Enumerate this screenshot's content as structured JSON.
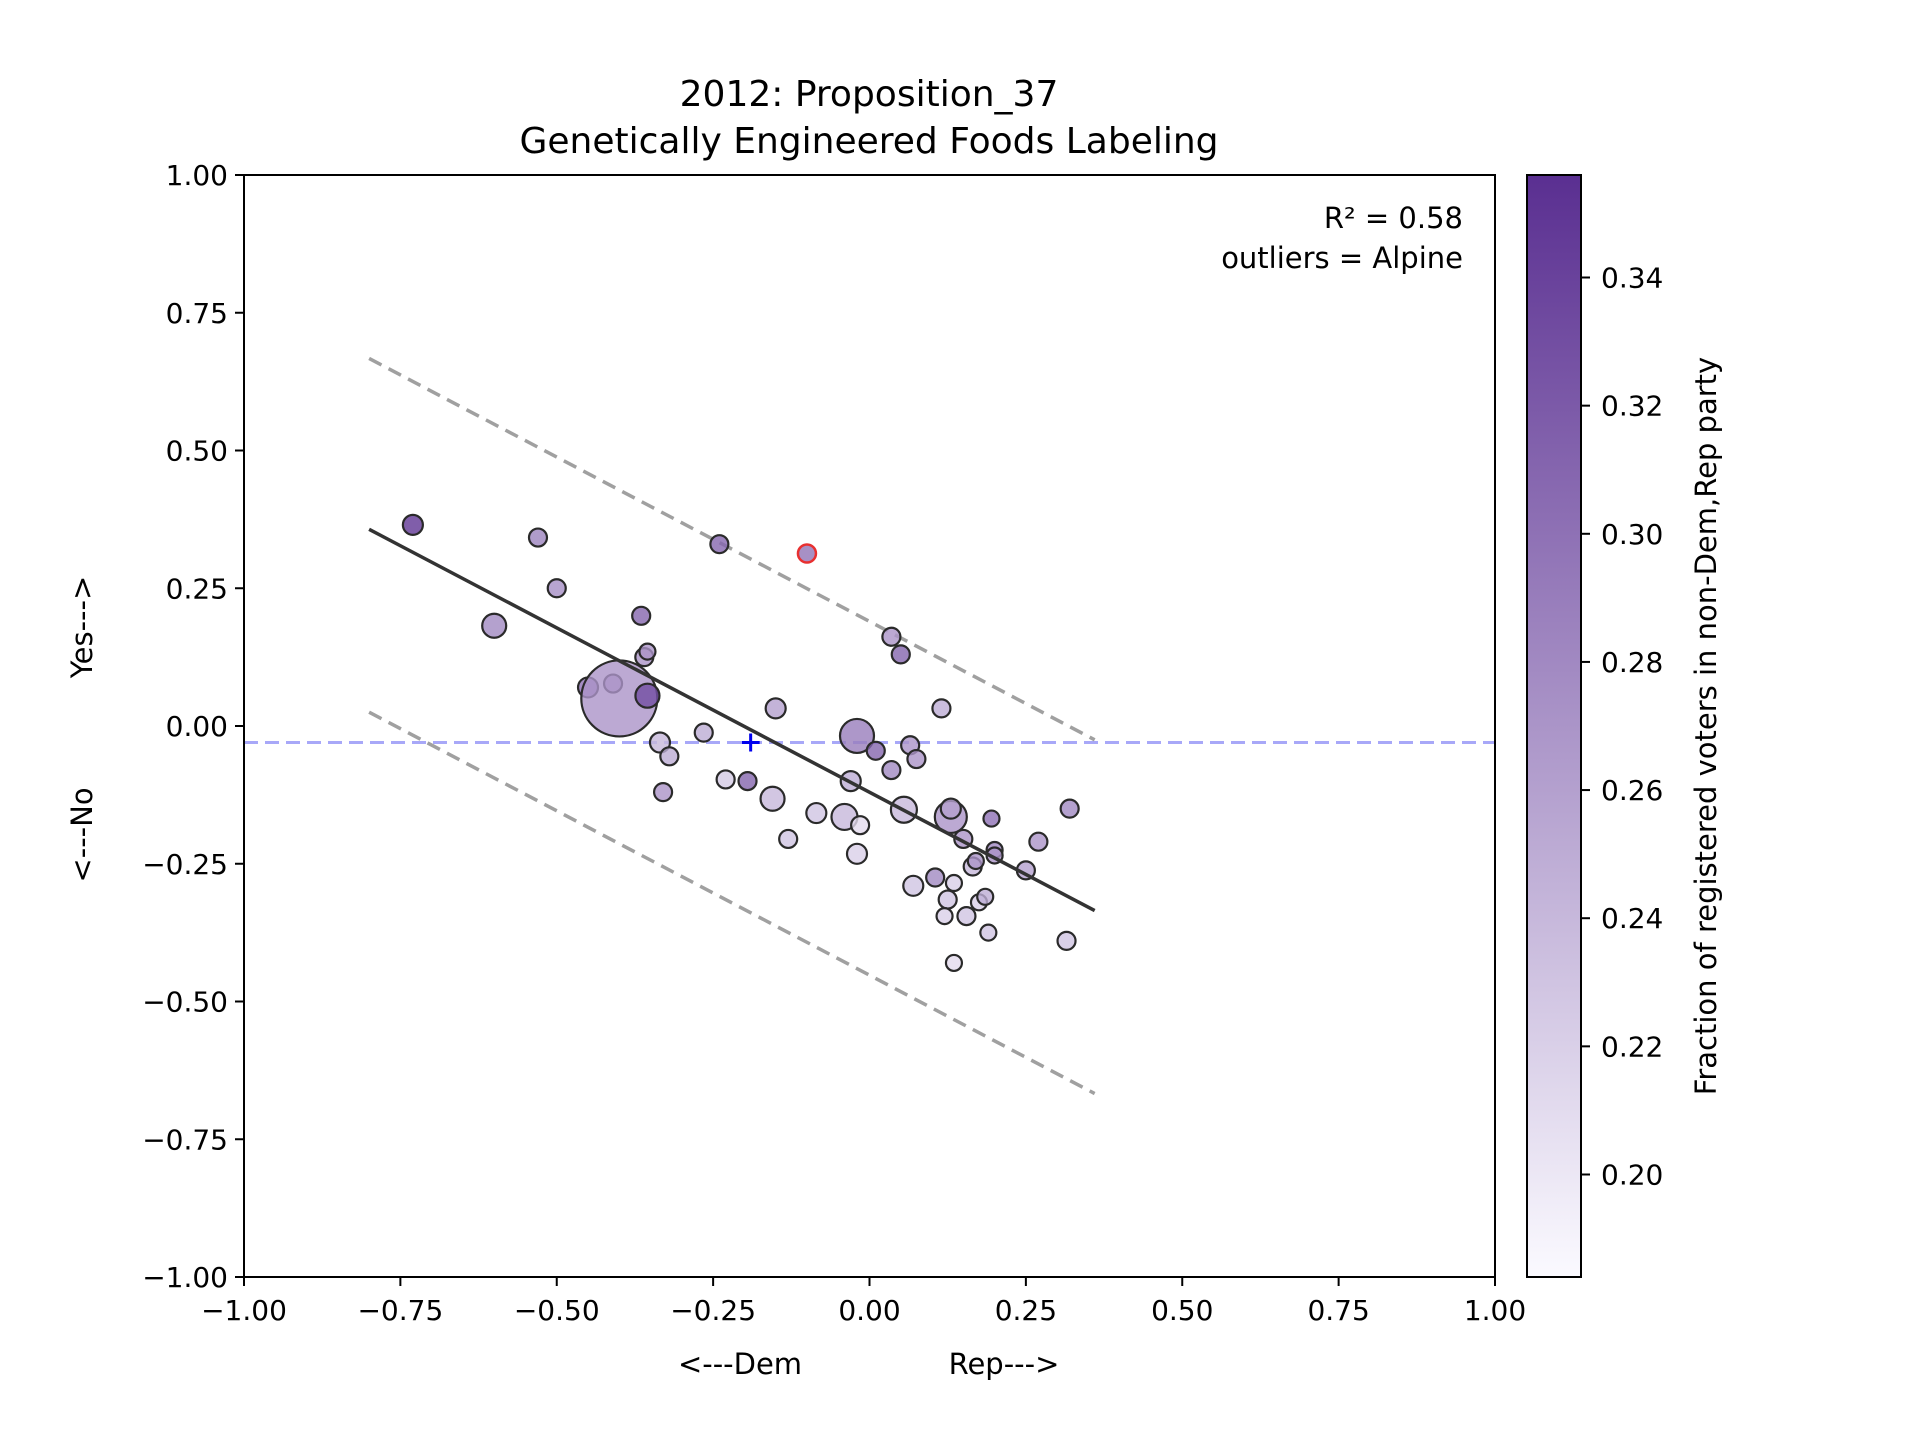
{
  "chart_data": {
    "type": "scatter",
    "title_line1": "2012: Proposition_37",
    "title_line2": "Genetically Engineered Foods Labeling",
    "xlabel_left": "<---Dem",
    "xlabel_right": "Rep--->",
    "ylabel_top": "Yes--->",
    "ylabel_bottom": "<---No",
    "xlim": [
      -1.0,
      1.0
    ],
    "ylim": [
      -1.0,
      1.0
    ],
    "x_ticks": [
      -1.0,
      -0.75,
      -0.5,
      -0.25,
      0.0,
      0.25,
      0.5,
      0.75,
      1.0
    ],
    "x_tick_labels": [
      "−1.00",
      "−0.75",
      "−0.50",
      "−0.25",
      "0.00",
      "0.25",
      "0.50",
      "0.75",
      "1.00"
    ],
    "y_ticks": [
      1.0,
      0.75,
      0.5,
      0.25,
      0.0,
      -0.25,
      -0.5,
      -0.75,
      -1.0
    ],
    "y_tick_labels": [
      "1.00",
      "0.75",
      "0.50",
      "0.25",
      "0.00",
      "−0.25",
      "−0.50",
      "−0.75",
      "−1.00"
    ],
    "grid": false,
    "annotation_r2": "R² = 0.58",
    "annotation_outliers": "outliers = Alpine",
    "colorbar": {
      "label": "Fraction of registered voters in non-Dem,Rep party",
      "range": [
        0.184,
        0.356
      ],
      "ticks": [
        0.34,
        0.32,
        0.3,
        0.28,
        0.26,
        0.24,
        0.22,
        0.2
      ],
      "tick_labels": [
        "0.34",
        "0.32",
        "0.30",
        "0.28",
        "0.26",
        "0.24",
        "0.22",
        "0.20"
      ],
      "color_low": "#fbfaff",
      "color_high": "#5a2f91"
    },
    "regression_line": {
      "x": [
        -0.8,
        0.36
      ],
      "y": [
        0.357,
        -0.335
      ],
      "color": "#333333"
    },
    "upper_band": {
      "x": [
        -0.8,
        0.36
      ],
      "y": [
        0.667,
        -0.025
      ],
      "color": "#a0a0a0"
    },
    "lower_band": {
      "x": [
        -0.8,
        0.36
      ],
      "y": [
        0.025,
        -0.667
      ],
      "color": "#a0a0a0"
    },
    "mean_line_y": -0.03,
    "mean_line_color": "#a8a8f8",
    "mean_marker": {
      "x": -0.19,
      "y": -0.03,
      "color": "#0000ee"
    },
    "outlier": {
      "x": -0.1,
      "y": 0.313,
      "color": "#e83030"
    },
    "points": [
      {
        "x": -0.73,
        "y": 0.365,
        "c": 0.35,
        "s": 10
      },
      {
        "x": -0.53,
        "y": 0.342,
        "c": 0.285,
        "s": 9
      },
      {
        "x": -0.6,
        "y": 0.182,
        "c": 0.28,
        "s": 12
      },
      {
        "x": -0.5,
        "y": 0.25,
        "c": 0.275,
        "s": 9
      },
      {
        "x": -0.24,
        "y": 0.33,
        "c": 0.31,
        "s": 9
      },
      {
        "x": -0.365,
        "y": 0.2,
        "c": 0.31,
        "s": 9
      },
      {
        "x": -0.36,
        "y": 0.125,
        "c": 0.27,
        "s": 9
      },
      {
        "x": -0.355,
        "y": 0.135,
        "c": 0.27,
        "s": 8
      },
      {
        "x": -0.45,
        "y": 0.07,
        "c": 0.3,
        "s": 10
      },
      {
        "x": -0.41,
        "y": 0.077,
        "c": 0.27,
        "s": 9
      },
      {
        "x": -0.4,
        "y": 0.05,
        "c": 0.27,
        "s": 38
      },
      {
        "x": -0.355,
        "y": 0.055,
        "c": 0.33,
        "s": 12
      },
      {
        "x": -0.335,
        "y": -0.03,
        "c": 0.24,
        "s": 10
      },
      {
        "x": -0.32,
        "y": -0.055,
        "c": 0.25,
        "s": 9
      },
      {
        "x": -0.33,
        "y": -0.12,
        "c": 0.27,
        "s": 9
      },
      {
        "x": -0.265,
        "y": -0.012,
        "c": 0.25,
        "s": 9
      },
      {
        "x": -0.23,
        "y": -0.097,
        "c": 0.225,
        "s": 9
      },
      {
        "x": -0.195,
        "y": -0.1,
        "c": 0.31,
        "s": 9
      },
      {
        "x": -0.15,
        "y": 0.032,
        "c": 0.26,
        "s": 10
      },
      {
        "x": -0.155,
        "y": -0.132,
        "c": 0.24,
        "s": 12
      },
      {
        "x": -0.13,
        "y": -0.205,
        "c": 0.23,
        "s": 9
      },
      {
        "x": -0.085,
        "y": -0.158,
        "c": 0.23,
        "s": 10
      },
      {
        "x": -0.04,
        "y": -0.165,
        "c": 0.24,
        "s": 13
      },
      {
        "x": -0.03,
        "y": -0.1,
        "c": 0.25,
        "s": 10
      },
      {
        "x": -0.02,
        "y": -0.232,
        "c": 0.22,
        "s": 10
      },
      {
        "x": -0.015,
        "y": -0.18,
        "c": 0.21,
        "s": 9
      },
      {
        "x": -0.02,
        "y": -0.018,
        "c": 0.29,
        "s": 17
      },
      {
        "x": 0.01,
        "y": -0.045,
        "c": 0.31,
        "s": 9
      },
      {
        "x": 0.035,
        "y": -0.08,
        "c": 0.28,
        "s": 9
      },
      {
        "x": 0.035,
        "y": 0.162,
        "c": 0.27,
        "s": 9
      },
      {
        "x": 0.05,
        "y": 0.13,
        "c": 0.31,
        "s": 9
      },
      {
        "x": 0.055,
        "y": -0.152,
        "c": 0.24,
        "s": 13
      },
      {
        "x": 0.065,
        "y": -0.035,
        "c": 0.27,
        "s": 9
      },
      {
        "x": 0.075,
        "y": -0.06,
        "c": 0.27,
        "s": 9
      },
      {
        "x": 0.07,
        "y": -0.29,
        "c": 0.23,
        "s": 10
      },
      {
        "x": 0.105,
        "y": -0.275,
        "c": 0.28,
        "s": 9
      },
      {
        "x": 0.115,
        "y": 0.032,
        "c": 0.25,
        "s": 9
      },
      {
        "x": 0.13,
        "y": -0.165,
        "c": 0.27,
        "s": 16
      },
      {
        "x": 0.13,
        "y": -0.15,
        "c": 0.26,
        "s": 10
      },
      {
        "x": 0.125,
        "y": -0.315,
        "c": 0.23,
        "s": 9
      },
      {
        "x": 0.12,
        "y": -0.345,
        "c": 0.22,
        "s": 8
      },
      {
        "x": 0.135,
        "y": -0.285,
        "c": 0.22,
        "s": 8
      },
      {
        "x": 0.15,
        "y": -0.205,
        "c": 0.27,
        "s": 9
      },
      {
        "x": 0.155,
        "y": -0.345,
        "c": 0.23,
        "s": 9
      },
      {
        "x": 0.165,
        "y": -0.255,
        "c": 0.24,
        "s": 9
      },
      {
        "x": 0.17,
        "y": -0.245,
        "c": 0.27,
        "s": 8
      },
      {
        "x": 0.175,
        "y": -0.32,
        "c": 0.22,
        "s": 8
      },
      {
        "x": 0.185,
        "y": -0.31,
        "c": 0.25,
        "s": 8
      },
      {
        "x": 0.19,
        "y": -0.375,
        "c": 0.23,
        "s": 8
      },
      {
        "x": 0.195,
        "y": -0.168,
        "c": 0.3,
        "s": 8
      },
      {
        "x": 0.2,
        "y": -0.225,
        "c": 0.28,
        "s": 8
      },
      {
        "x": 0.2,
        "y": -0.235,
        "c": 0.27,
        "s": 8
      },
      {
        "x": 0.135,
        "y": -0.43,
        "c": 0.21,
        "s": 8
      },
      {
        "x": 0.25,
        "y": -0.262,
        "c": 0.26,
        "s": 9
      },
      {
        "x": 0.27,
        "y": -0.21,
        "c": 0.27,
        "s": 9
      },
      {
        "x": 0.315,
        "y": -0.39,
        "c": 0.23,
        "s": 9
      },
      {
        "x": 0.32,
        "y": -0.15,
        "c": 0.28,
        "s": 9
      }
    ]
  }
}
